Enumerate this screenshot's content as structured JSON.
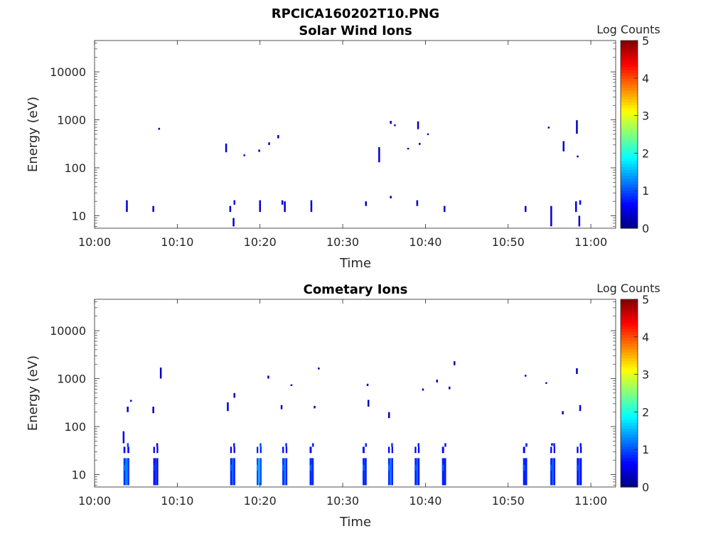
{
  "figure": {
    "title": "RPCICA160202T10.PNG"
  },
  "colormap": {
    "name": "jet",
    "background": "#ffffff",
    "axis_color": "#262626"
  },
  "chart_data": [
    {
      "type": "heatmap",
      "title": "Solar Wind Ions",
      "xlabel": "Time",
      "ylabel": "Energy (eV)",
      "yscale": "log",
      "xlim": [
        "10:00",
        "11:03"
      ],
      "ylim": [
        5.5,
        45000
      ],
      "xticks": [
        "10:00",
        "10:10",
        "10:20",
        "10:30",
        "10:40",
        "10:50",
        "11:00"
      ],
      "yticks": [
        10,
        100,
        1000,
        10000
      ],
      "ytick_labels": [
        "10",
        "100",
        "1000",
        "10000"
      ],
      "colorbar": {
        "label": "Log Counts",
        "range": [
          0,
          5
        ],
        "ticks": [
          "0",
          "1",
          "2",
          "3",
          "4",
          "5"
        ]
      },
      "grid": false,
      "points": [
        {
          "t": "10:03.8",
          "e": [
            12,
            21
          ],
          "v": 0.4
        },
        {
          "t": "10:07.0",
          "e": [
            12,
            16
          ],
          "v": 0.4
        },
        {
          "t": "10:07.7",
          "e": [
            620,
            680
          ],
          "v": 0.3
        },
        {
          "t": "10:15.8",
          "e": [
            210,
            320
          ],
          "v": 0.4
        },
        {
          "t": "10:16.3",
          "e": [
            12,
            16
          ],
          "v": 0.4
        },
        {
          "t": "10:16.7",
          "e": [
            6,
            9
          ],
          "v": 0.4
        },
        {
          "t": "10:16.8",
          "e": [
            17,
            21
          ],
          "v": 0.5
        },
        {
          "t": "10:18.0",
          "e": [
            175,
            190
          ],
          "v": 0.3
        },
        {
          "t": "10:19.8",
          "e": [
            215,
            240
          ],
          "v": 0.3
        },
        {
          "t": "10:19.9",
          "e": [
            12,
            21
          ],
          "v": 0.4
        },
        {
          "t": "10:21.0",
          "e": [
            300,
            340
          ],
          "v": 0.3
        },
        {
          "t": "10:22.1",
          "e": [
            410,
            480
          ],
          "v": 0.4
        },
        {
          "t": "10:22.6",
          "e": [
            17,
            21
          ],
          "v": 0.5
        },
        {
          "t": "10:22.9",
          "e": [
            12,
            20
          ],
          "v": 0.4
        },
        {
          "t": "10:26.1",
          "e": [
            12,
            21
          ],
          "v": 0.4
        },
        {
          "t": "10:32.7",
          "e": [
            16,
            20
          ],
          "v": 0.3
        },
        {
          "t": "10:34.3",
          "e": [
            130,
            270
          ],
          "v": 0.4
        },
        {
          "t": "10:35.7",
          "e": [
            23,
            26
          ],
          "v": 0.3
        },
        {
          "t": "10:35.7",
          "e": [
            820,
            950
          ],
          "v": 0.3
        },
        {
          "t": "10:36.2",
          "e": [
            740,
            800
          ],
          "v": 0.3
        },
        {
          "t": "10:37.8",
          "e": [
            240,
            260
          ],
          "v": 0.3
        },
        {
          "t": "10:38.9",
          "e": [
            16,
            21
          ],
          "v": 0.4
        },
        {
          "t": "10:39.0",
          "e": [
            640,
            930
          ],
          "v": 0.3
        },
        {
          "t": "10:39.2",
          "e": [
            300,
            330
          ],
          "v": 0.3
        },
        {
          "t": "10:40.2",
          "e": [
            480,
            520
          ],
          "v": 0.3
        },
        {
          "t": "10:42.2",
          "e": [
            12,
            16
          ],
          "v": 0.4
        },
        {
          "t": "10:52.0",
          "e": [
            12,
            16
          ],
          "v": 0.4
        },
        {
          "t": "10:54.8",
          "e": [
            660,
            720
          ],
          "v": 0.3
        },
        {
          "t": "10:55.1",
          "e": [
            6,
            16
          ],
          "v": 0.4
        },
        {
          "t": "10:56.6",
          "e": [
            220,
            360
          ],
          "v": 0.4
        },
        {
          "t": "10:58.1",
          "e": [
            12,
            20
          ],
          "v": 0.4
        },
        {
          "t": "10:58.2",
          "e": [
            510,
            980
          ],
          "v": 0.3
        },
        {
          "t": "10:58.3",
          "e": [
            165,
            180
          ],
          "v": 0.3
        },
        {
          "t": "10:58.5",
          "e": [
            6,
            10
          ],
          "v": 0.4
        },
        {
          "t": "10:58.6",
          "e": [
            17,
            21
          ],
          "v": 0.5
        }
      ]
    },
    {
      "type": "heatmap",
      "title": "Cometary Ions",
      "xlabel": "Time",
      "ylabel": "Energy (eV)",
      "yscale": "log",
      "xlim": [
        "10:00",
        "11:03"
      ],
      "ylim": [
        5.5,
        45000
      ],
      "xticks": [
        "10:00",
        "10:10",
        "10:20",
        "10:30",
        "10:40",
        "10:50",
        "11:00"
      ],
      "yticks": [
        10,
        100,
        1000,
        10000
      ],
      "ytick_labels": [
        "10",
        "100",
        "1000",
        "10000"
      ],
      "colorbar": {
        "label": "Log Counts",
        "range": [
          0,
          5
        ],
        "ticks": [
          "0",
          "1",
          "2",
          "3",
          "4",
          "5"
        ]
      },
      "grid": false,
      "bursts": [
        {
          "t": "10:03.5",
          "w": 0.7,
          "peak": 1.3
        },
        {
          "t": "10:07.1",
          "w": 0.6,
          "peak": 0.9
        },
        {
          "t": "10:16.4",
          "w": 0.6,
          "peak": 1.1
        },
        {
          "t": "10:19.6",
          "w": 0.6,
          "peak": 1.5
        },
        {
          "t": "10:22.7",
          "w": 0.6,
          "peak": 1.2
        },
        {
          "t": "10:26.0",
          "w": 0.5,
          "peak": 1.1
        },
        {
          "t": "10:32.4",
          "w": 0.5,
          "peak": 1.1
        },
        {
          "t": "10:35.5",
          "w": 0.6,
          "peak": 1.2
        },
        {
          "t": "10:38.7",
          "w": 0.6,
          "peak": 1.1
        },
        {
          "t": "10:42.0",
          "w": 0.5,
          "peak": 1.0
        },
        {
          "t": "10:51.8",
          "w": 0.5,
          "peak": 1.0
        },
        {
          "t": "10:55.1",
          "w": 0.6,
          "peak": 1.1
        },
        {
          "t": "10:58.3",
          "w": 0.6,
          "peak": 1.0
        }
      ],
      "points": [
        {
          "t": "10:03.4",
          "e": [
            45,
            80
          ],
          "v": 0.5
        },
        {
          "t": "10:03.9",
          "e": [
            200,
            260
          ],
          "v": 0.3
        },
        {
          "t": "10:04.3",
          "e": [
            330,
            360
          ],
          "v": 0.3
        },
        {
          "t": "10:07.0",
          "e": [
            190,
            260
          ],
          "v": 0.3
        },
        {
          "t": "10:07.9",
          "e": [
            1000,
            1700
          ],
          "v": 0.3
        },
        {
          "t": "10:16.0",
          "e": [
            210,
            320
          ],
          "v": 0.4
        },
        {
          "t": "10:16.8",
          "e": [
            400,
            500
          ],
          "v": 0.3
        },
        {
          "t": "10:20.9",
          "e": [
            1000,
            1150
          ],
          "v": 0.3
        },
        {
          "t": "10:22.5",
          "e": [
            230,
            280
          ],
          "v": 0.5
        },
        {
          "t": "10:23.7",
          "e": [
            700,
            760
          ],
          "v": 0.3
        },
        {
          "t": "10:26.5",
          "e": [
            240,
            270
          ],
          "v": 0.4
        },
        {
          "t": "10:27.0",
          "e": [
            1550,
            1700
          ],
          "v": 0.3
        },
        {
          "t": "10:32.9",
          "e": [
            700,
            780
          ],
          "v": 0.3
        },
        {
          "t": "10:33.0",
          "e": [
            260,
            360
          ],
          "v": 0.3
        },
        {
          "t": "10:35.5",
          "e": [
            150,
            200
          ],
          "v": 0.3
        },
        {
          "t": "10:39.6",
          "e": [
            560,
            620
          ],
          "v": 0.3
        },
        {
          "t": "10:41.3",
          "e": [
            830,
            950
          ],
          "v": 0.3
        },
        {
          "t": "10:42.8",
          "e": [
            600,
            680
          ],
          "v": 0.3
        },
        {
          "t": "10:43.4",
          "e": [
            1900,
            2300
          ],
          "v": 0.3
        },
        {
          "t": "10:52.0",
          "e": [
            1100,
            1200
          ],
          "v": 0.3
        },
        {
          "t": "10:54.5",
          "e": [
            780,
            840
          ],
          "v": 0.3
        },
        {
          "t": "10:58.2",
          "e": [
            1250,
            1650
          ],
          "v": 0.3
        },
        {
          "t": "10:56.5",
          "e": [
            180,
            210
          ],
          "v": 0.3
        },
        {
          "t": "10:55.2",
          "e": [
            40,
            45
          ],
          "v": 0.6
        },
        {
          "t": "10:58.6",
          "e": [
            210,
            280
          ],
          "v": 0.5
        }
      ]
    }
  ]
}
